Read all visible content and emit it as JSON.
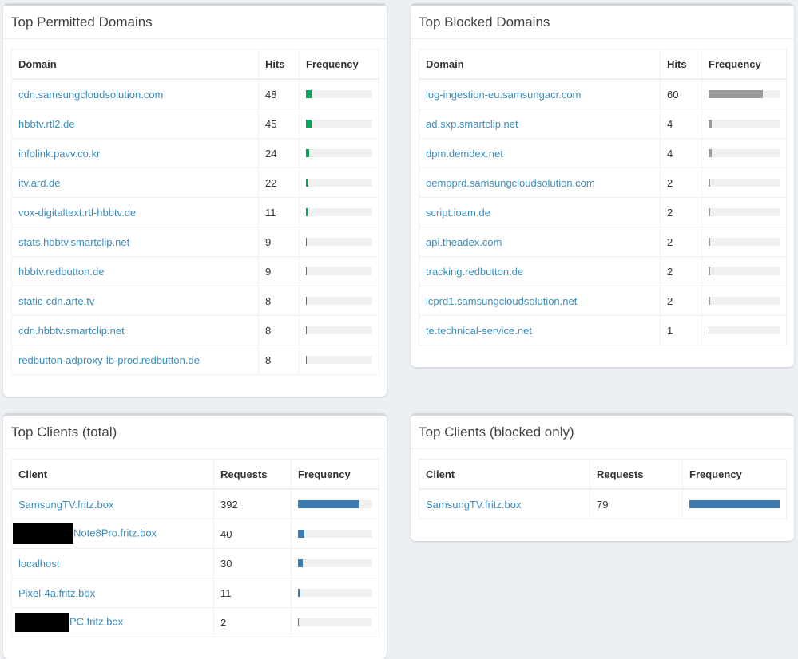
{
  "permitted": {
    "title": "Top Permitted Domains",
    "headers": [
      "Domain",
      "Hits",
      "Frequency"
    ],
    "bar_color": "#00a65a",
    "rows": [
      {
        "name": "cdn.samsungcloudsolution.com",
        "value": "48",
        "freq": 0.085
      },
      {
        "name": "hbbtv.rtl2.de",
        "value": "45",
        "freq": 0.08
      },
      {
        "name": "infolink.pavv.co.kr",
        "value": "24",
        "freq": 0.043
      },
      {
        "name": "itv.ard.de",
        "value": "22",
        "freq": 0.039
      },
      {
        "name": "vox-digitaltext.rtl-hbbtv.de",
        "value": "11",
        "freq": 0.02
      },
      {
        "name": "stats.hbbtv.smartclip.net",
        "value": "9",
        "freq": 0.016
      },
      {
        "name": "hbbtv.redbutton.de",
        "value": "9",
        "freq": 0.016
      },
      {
        "name": "static-cdn.arte.tv",
        "value": "8",
        "freq": 0.014
      },
      {
        "name": "cdn.hbbtv.smartclip.net",
        "value": "8",
        "freq": 0.014
      },
      {
        "name": "redbutton-adproxy-lb-prod.redbutton.de",
        "value": "8",
        "freq": 0.014
      }
    ]
  },
  "blocked": {
    "title": "Top Blocked Domains",
    "headers": [
      "Domain",
      "Hits",
      "Frequency"
    ],
    "bar_color": "#999999",
    "rows": [
      {
        "name": "log-ingestion-eu.samsungacr.com",
        "value": "60",
        "freq": 0.76
      },
      {
        "name": "ad.sxp.smartclip.net",
        "value": "4",
        "freq": 0.05
      },
      {
        "name": "dpm.demdex.net",
        "value": "4",
        "freq": 0.05
      },
      {
        "name": "oempprd.samsungcloudsolution.com",
        "value": "2",
        "freq": 0.025
      },
      {
        "name": "script.ioam.de",
        "value": "2",
        "freq": 0.025
      },
      {
        "name": "api.theadex.com",
        "value": "2",
        "freq": 0.025
      },
      {
        "name": "tracking.redbutton.de",
        "value": "2",
        "freq": 0.025
      },
      {
        "name": "lcprd1.samsungcloudsolution.net",
        "value": "2",
        "freq": 0.025
      },
      {
        "name": "te.technical-service.net",
        "value": "1",
        "freq": 0.013
      }
    ]
  },
  "clients_total": {
    "title": "Top Clients (total)",
    "headers": [
      "Client",
      "Requests",
      "Frequency"
    ],
    "bar_color": "#3c7bb0",
    "rows": [
      {
        "name": "SamsungTV.fritz.box",
        "value": "392",
        "freq": 0.83,
        "redacted": false
      },
      {
        "name": "Note8Pro.fritz.box",
        "value": "40",
        "freq": 0.085,
        "redacted": true
      },
      {
        "name": "localhost",
        "value": "30",
        "freq": 0.064,
        "redacted": false
      },
      {
        "name": "Pixel-4a.fritz.box",
        "value": "11",
        "freq": 0.023,
        "redacted": false
      },
      {
        "name": "PC.fritz.box",
        "value": "2",
        "freq": 0.004,
        "redacted": true
      }
    ]
  },
  "clients_blocked": {
    "title": "Top Clients (blocked only)",
    "headers": [
      "Client",
      "Requests",
      "Frequency"
    ],
    "bar_color": "#3c7bb0",
    "rows": [
      {
        "name": "SamsungTV.fritz.box",
        "value": "79",
        "freq": 1.0,
        "redacted": false
      }
    ]
  }
}
